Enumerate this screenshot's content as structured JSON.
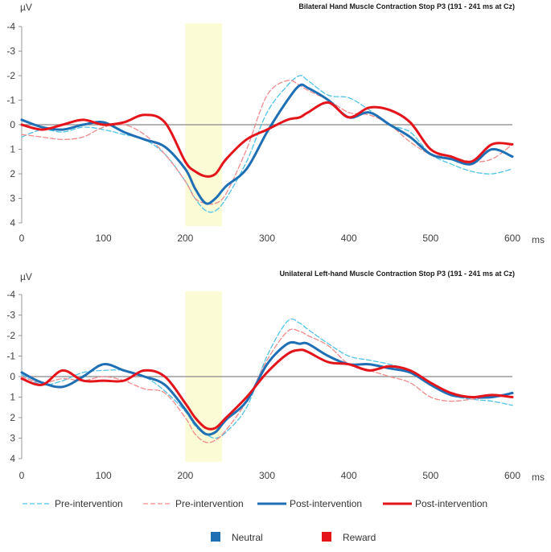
{
  "legend": {
    "lines": [
      {
        "label": "Pre-intervention",
        "color": "#4fc3e8",
        "dashed": true,
        "width": 1.3
      },
      {
        "label": "Pre-intervention",
        "color": "#f08a8a",
        "dashed": true,
        "width": 1.3
      },
      {
        "label": "Post-intervention",
        "color": "#1f6fb5",
        "dashed": false,
        "width": 3
      },
      {
        "label": "Post-intervention",
        "color": "#e4141b",
        "dashed": false,
        "width": 3
      }
    ],
    "conditions": [
      {
        "label": "Neutral",
        "color": "#1f6fb5"
      },
      {
        "label": "Reward",
        "color": "#e4141b"
      }
    ]
  },
  "colors": {
    "highlight": "#fbfbd6",
    "axis": "#999999",
    "zero_line": "#888888"
  },
  "chart_data": [
    {
      "type": "line",
      "title": "Bilateral Hand Muscle Contraction Stop P3 (191 - 241 ms at Cz)",
      "ylabel": "µV",
      "xunit": "ms",
      "xlim": [
        0,
        600
      ],
      "ylim": [
        4,
        -4
      ],
      "y_inverted": true,
      "xticks": [
        0,
        100,
        200,
        300,
        400,
        500,
        600
      ],
      "yticks": [
        "-4",
        "-3",
        "-2",
        "-1",
        "0",
        "1",
        "2",
        "3",
        "4"
      ],
      "highlight_window": [
        200,
        245
      ],
      "x": [
        0,
        25,
        50,
        75,
        100,
        125,
        150,
        175,
        200,
        212,
        225,
        237,
        250,
        275,
        300,
        325,
        340,
        350,
        375,
        400,
        425,
        450,
        475,
        500,
        525,
        550,
        575,
        600
      ],
      "series": [
        {
          "name": "Pre-intervention",
          "condition": "Neutral",
          "color": "#4fc3e8",
          "dashed": true,
          "values": [
            0.5,
            0.2,
            0.3,
            0.1,
            0.2,
            0.4,
            0.6,
            1.2,
            2.3,
            3.0,
            3.5,
            3.5,
            3.0,
            1.5,
            -0.5,
            -1.6,
            -2.0,
            -1.8,
            -1.2,
            -1.1,
            -0.6,
            0.0,
            0.3,
            1.2,
            1.6,
            1.9,
            2.0,
            1.8
          ]
        },
        {
          "name": "Pre-intervention",
          "condition": "Reward",
          "color": "#f08a8a",
          "dashed": true,
          "values": [
            0.4,
            0.5,
            0.6,
            0.5,
            0.1,
            0.0,
            0.4,
            1.2,
            2.3,
            3.0,
            3.2,
            3.2,
            2.8,
            1.0,
            -1.2,
            -1.8,
            -1.6,
            -1.4,
            -1.0,
            -0.5,
            -0.4,
            0.0,
            0.7,
            1.2,
            1.3,
            1.5,
            1.4,
            0.8
          ]
        },
        {
          "name": "Post-intervention",
          "condition": "Neutral",
          "color": "#1f6fb5",
          "dashed": false,
          "values": [
            -0.2,
            0.1,
            0.2,
            0.0,
            -0.1,
            0.3,
            0.6,
            0.9,
            1.8,
            2.6,
            3.2,
            3.0,
            2.5,
            1.8,
            0.3,
            -1.0,
            -1.6,
            -1.5,
            -1.0,
            -0.3,
            -0.5,
            0.0,
            0.5,
            1.2,
            1.4,
            1.6,
            1.0,
            1.3
          ]
        },
        {
          "name": "Post-intervention",
          "condition": "Reward",
          "color": "#e4141b",
          "dashed": false,
          "values": [
            0.0,
            0.2,
            0.0,
            -0.2,
            0.0,
            -0.1,
            -0.4,
            -0.1,
            1.5,
            1.9,
            2.1,
            2.0,
            1.4,
            0.6,
            0.2,
            -0.2,
            -0.3,
            -0.5,
            -0.9,
            -0.3,
            -0.7,
            -0.6,
            -0.1,
            1.0,
            1.3,
            1.5,
            0.8,
            0.8
          ]
        }
      ]
    },
    {
      "type": "line",
      "title": "Unilateral Left-hand Muscle Contraction Stop P3 (191 - 241 ms at Cz)",
      "ylabel": "µV",
      "xunit": "ms",
      "xlim": [
        0,
        600
      ],
      "ylim": [
        4,
        -4
      ],
      "y_inverted": true,
      "xticks": [
        0,
        100,
        200,
        300,
        400,
        500,
        600
      ],
      "yticks": [
        "-4",
        "-3",
        "-2",
        "-1",
        "0",
        "1",
        "2",
        "3",
        "4"
      ],
      "highlight_window": [
        200,
        245
      ],
      "x": [
        0,
        25,
        50,
        75,
        100,
        125,
        150,
        175,
        200,
        212,
        225,
        237,
        250,
        275,
        300,
        325,
        340,
        350,
        375,
        400,
        425,
        450,
        475,
        500,
        525,
        550,
        575,
        600
      ],
      "series": [
        {
          "name": "Pre-intervention",
          "condition": "Neutral",
          "color": "#4fc3e8",
          "dashed": true,
          "values": [
            -0.1,
            0.4,
            0.2,
            -0.2,
            -0.3,
            -0.3,
            0.0,
            0.7,
            1.7,
            2.4,
            2.8,
            3.0,
            2.7,
            1.5,
            -1.0,
            -2.7,
            -2.6,
            -2.3,
            -1.6,
            -1.0,
            -0.8,
            -0.6,
            -0.3,
            0.3,
            0.9,
            1.1,
            1.2,
            1.4
          ]
        },
        {
          "name": "Pre-intervention",
          "condition": "Reward",
          "color": "#f08a8a",
          "dashed": true,
          "values": [
            0.0,
            0.3,
            0.1,
            0.2,
            0.0,
            0.2,
            0.6,
            0.8,
            2.0,
            2.8,
            3.2,
            3.1,
            2.6,
            1.2,
            -0.8,
            -2.2,
            -2.2,
            -2.0,
            -1.5,
            -0.6,
            -0.3,
            0.0,
            0.3,
            1.0,
            1.2,
            1.1,
            1.0,
            0.8
          ]
        },
        {
          "name": "Post-intervention",
          "condition": "Neutral",
          "color": "#1f6fb5",
          "dashed": false,
          "values": [
            -0.2,
            0.3,
            0.5,
            0.0,
            -0.6,
            -0.3,
            0.0,
            0.4,
            1.6,
            2.3,
            2.8,
            2.7,
            2.1,
            1.2,
            -0.6,
            -1.6,
            -1.6,
            -1.6,
            -1.0,
            -0.6,
            -0.6,
            -0.4,
            -0.2,
            0.4,
            0.9,
            1.0,
            1.0,
            0.8
          ]
        },
        {
          "name": "Post-intervention",
          "condition": "Reward",
          "color": "#e4141b",
          "dashed": false,
          "values": [
            0.1,
            0.4,
            -0.3,
            0.2,
            0.2,
            0.2,
            -0.3,
            0.0,
            1.3,
            2.0,
            2.5,
            2.5,
            2.0,
            1.0,
            -0.2,
            -1.1,
            -1.3,
            -1.2,
            -0.7,
            -0.6,
            -0.3,
            -0.5,
            -0.3,
            0.3,
            0.8,
            1.0,
            0.9,
            1.0
          ]
        }
      ]
    }
  ]
}
